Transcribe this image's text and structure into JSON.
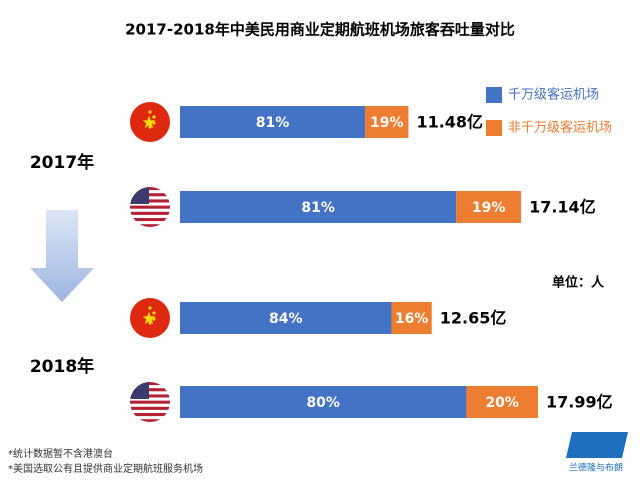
{
  "chart_data": {
    "type": "stacked-bar-100",
    "title": "2017-2018年中美民用商业定期航班机场旅客吞吐量对比",
    "groups": [
      "2017年",
      "2018年"
    ],
    "series": [
      {
        "name": "千万级客运机场",
        "color": "#4472c4",
        "values": [
          81,
          81,
          84,
          80
        ],
        "value_labels": [
          "81%",
          "81%",
          "84%",
          "80%"
        ]
      },
      {
        "name": "非千万级客运机场",
        "color": "#ed7d31",
        "values": [
          19,
          19,
          16,
          20
        ],
        "value_labels": [
          "19%",
          "19%",
          "16%",
          "20%"
        ]
      }
    ],
    "totals": [
      11.48,
      17.14,
      12.65,
      17.99
    ],
    "total_labels": [
      "11.48亿",
      "17.14亿",
      "12.65亿",
      "17.99亿"
    ],
    "unit_note": "单位：人",
    "notes": [
      "*统计数据暂不含港澳台",
      "*美国选取公有且提供商业定期航班服务机场"
    ],
    "logo": "兰德隆与布朗"
  }
}
